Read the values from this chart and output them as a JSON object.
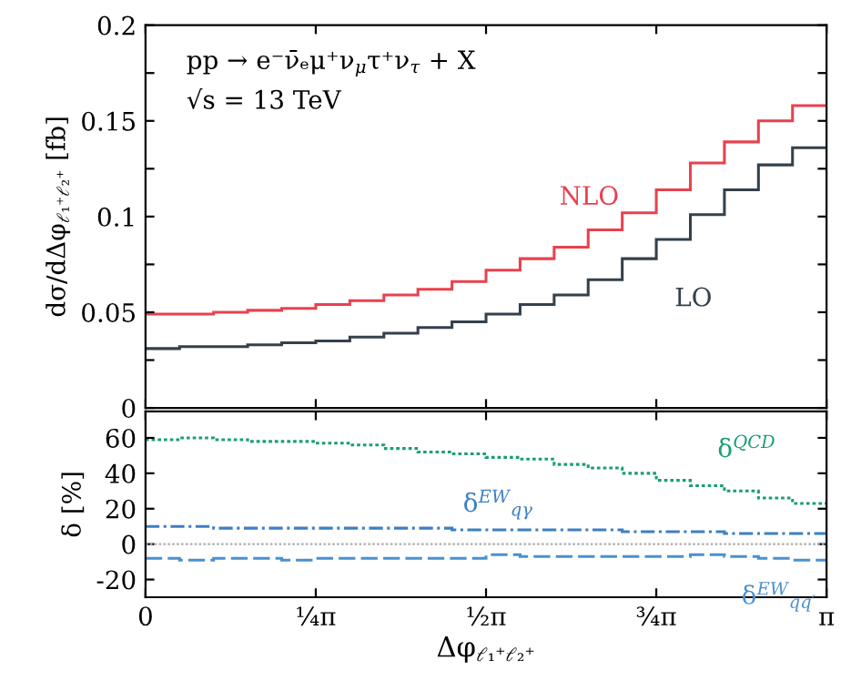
{
  "chart_data": [
    {
      "type": "histogram",
      "ylabel": "dσ/dΔφ$_{ℓ₁⁺ℓ₂⁺}$ [fb]",
      "annotations": [
        "pp → e⁻ν̄ₑμ⁺ν$_{μ}$τ⁺ν$_{τ}$ + X",
        "√s = 13 TeV"
      ],
      "bins": [
        0,
        0.1571,
        0.3142,
        0.4712,
        0.6283,
        0.7854,
        0.9425,
        1.0996,
        1.2566,
        1.4137,
        1.5708,
        1.7279,
        1.885,
        2.042,
        2.1991,
        2.3562,
        2.5133,
        2.6704,
        2.8274,
        2.9845,
        3.1416
      ],
      "series": [
        {
          "name": "NLO",
          "color": "#e8414e",
          "values": [
            0.049,
            0.049,
            0.05,
            0.051,
            0.052,
            0.054,
            0.056,
            0.059,
            0.062,
            0.066,
            0.072,
            0.078,
            0.084,
            0.093,
            0.102,
            0.114,
            0.128,
            0.139,
            0.15,
            0.158
          ]
        },
        {
          "name": "LO",
          "color": "#34404c",
          "values": [
            0.031,
            0.032,
            0.032,
            0.033,
            0.034,
            0.035,
            0.037,
            0.039,
            0.042,
            0.045,
            0.049,
            0.054,
            0.059,
            0.067,
            0.078,
            0.088,
            0.101,
            0.114,
            0.127,
            0.136
          ]
        }
      ],
      "xlim": [
        0,
        3.1416
      ],
      "xticks": [
        {
          "value": 0,
          "label": null
        },
        {
          "value": 0.7854,
          "label": null
        },
        {
          "value": 1.5708,
          "label": null
        },
        {
          "value": 2.3562,
          "label": null
        },
        {
          "value": 3.1416,
          "label": null
        }
      ],
      "ylim": [
        0,
        0.2
      ],
      "yticks": [
        0,
        {
          "value": 0.025,
          "label": null
        },
        0.05,
        {
          "value": 0.075,
          "label": null
        },
        0.1,
        {
          "value": 0.125,
          "label": null
        },
        0.15,
        {
          "value": 0.175,
          "label": null
        },
        0.2
      ],
      "tick_labels": "y",
      "grid": false,
      "legend": false
    },
    {
      "type": "histogram",
      "xlabel": "Δφ$_{ℓ₁⁺ℓ₂⁺}$",
      "ylabel": "δ [%]",
      "bins": [
        0,
        0.1571,
        0.3142,
        0.4712,
        0.6283,
        0.7854,
        0.9425,
        1.0996,
        1.2566,
        1.4137,
        1.5708,
        1.7279,
        1.885,
        2.042,
        2.1991,
        2.3562,
        2.5133,
        2.6704,
        2.8274,
        2.9845,
        3.1416
      ],
      "series": [
        {
          "name": "δ$^{QCD}$",
          "color": "#1a9e76",
          "line_style": "dotted",
          "values": [
            59,
            60,
            59,
            58,
            58,
            57,
            56,
            54,
            52,
            51,
            49,
            48,
            45,
            43,
            40,
            36,
            33,
            30,
            26,
            23
          ]
        },
        {
          "name": "δ$^{EW}$$_{qγ}$",
          "color": "#3d7fc4",
          "line_style": "dashdot",
          "values": [
            10,
            10,
            9,
            9,
            9,
            9,
            9,
            9,
            9,
            8,
            8,
            8,
            8,
            8,
            7,
            7,
            7,
            6,
            6,
            6
          ]
        },
        {
          "name": "δ$^{EW}$$_{qq′}$",
          "color": "#4a90d0",
          "line_style": "dashed",
          "values": [
            -8,
            -9,
            -8,
            -8,
            -9,
            -8,
            -8,
            -8,
            -8,
            -8,
            -6,
            -7,
            -7,
            -7,
            -7,
            -7,
            -6,
            -7,
            -8,
            -9
          ]
        }
      ],
      "ref_lines": [
        {
          "axis": "y",
          "value": 0,
          "color": "#b0b0b0",
          "line_style": "dotted"
        }
      ],
      "xlim": [
        0,
        3.1416
      ],
      "xticks": [
        0,
        {
          "value": 0.7854,
          "label": "¼π"
        },
        {
          "value": 1.5708,
          "label": "½π"
        },
        {
          "value": 2.3562,
          "label": "¾π"
        },
        {
          "value": 3.1416,
          "label": "π"
        }
      ],
      "ylim": [
        -30,
        75
      ],
      "yticks": [
        -20,
        0,
        20,
        40,
        60
      ],
      "grid": false,
      "legend": false
    }
  ]
}
